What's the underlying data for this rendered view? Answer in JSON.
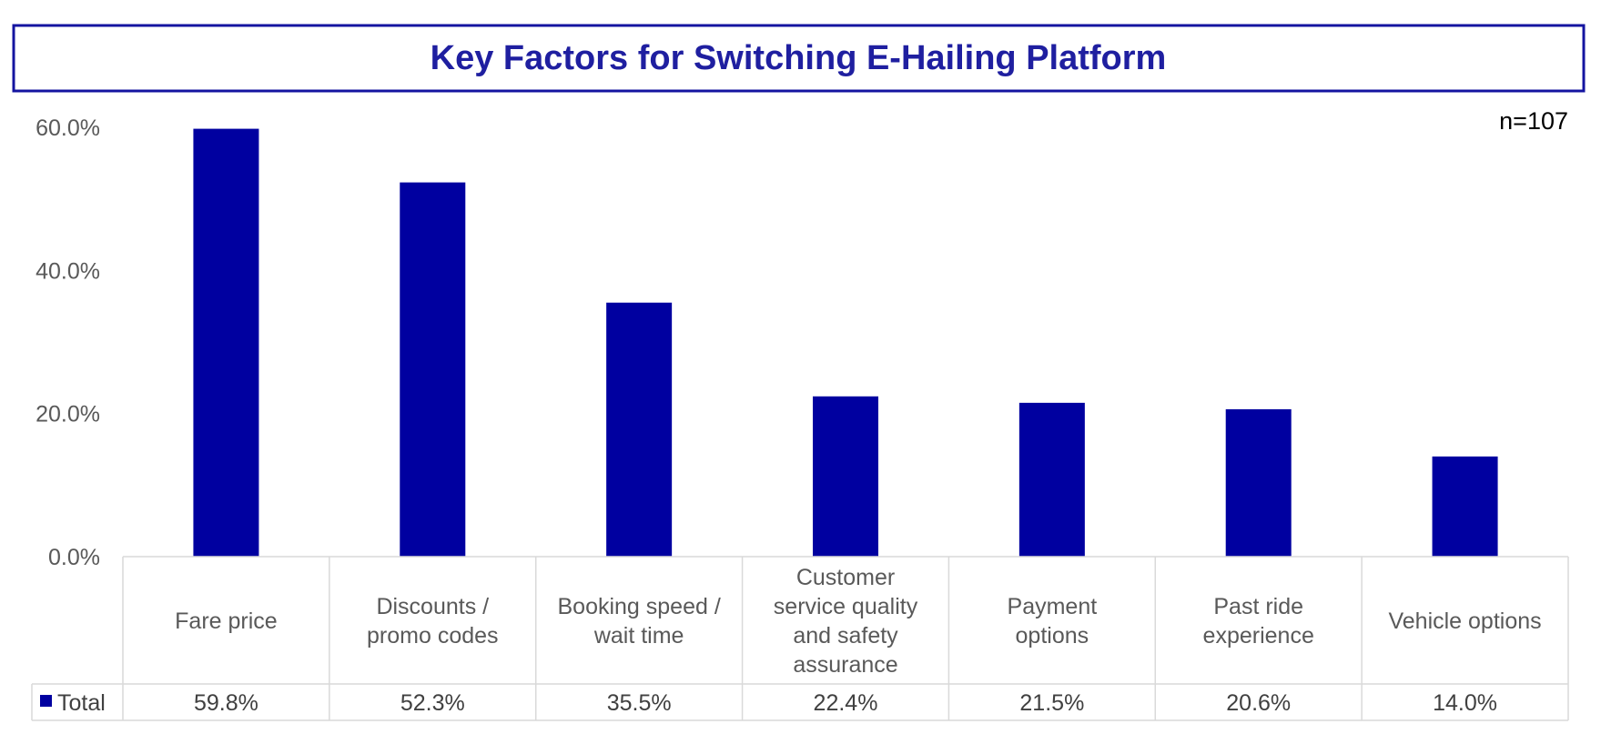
{
  "colors": {
    "bar": "#0000A0",
    "title": "#1F1FA0",
    "title_border": "#1414A0",
    "grid": "#D9D9D9"
  },
  "chart_data": {
    "type": "bar",
    "title": "Key Factors for Switching E-Hailing Platform",
    "note": "n=107",
    "categories": [
      [
        "Fare price"
      ],
      [
        "Discounts /",
        "promo codes"
      ],
      [
        "Booking speed /",
        "wait time"
      ],
      [
        "Customer",
        "service quality",
        "and safety",
        "assurance"
      ],
      [
        "Payment",
        "options"
      ],
      [
        "Past ride",
        "experience"
      ],
      [
        "Vehicle options"
      ]
    ],
    "series": [
      {
        "name": "Total",
        "values": [
          59.8,
          52.3,
          35.5,
          22.4,
          21.5,
          20.6,
          14.0
        ],
        "labels": [
          "59.8%",
          "52.3%",
          "35.5%",
          "22.4%",
          "21.5%",
          "20.6%",
          "14.0%"
        ]
      }
    ],
    "yticks": [
      "0.0%",
      "20.0%",
      "40.0%",
      "60.0%"
    ],
    "ylim": [
      0,
      60
    ],
    "legend": "data-table",
    "grid": false
  }
}
